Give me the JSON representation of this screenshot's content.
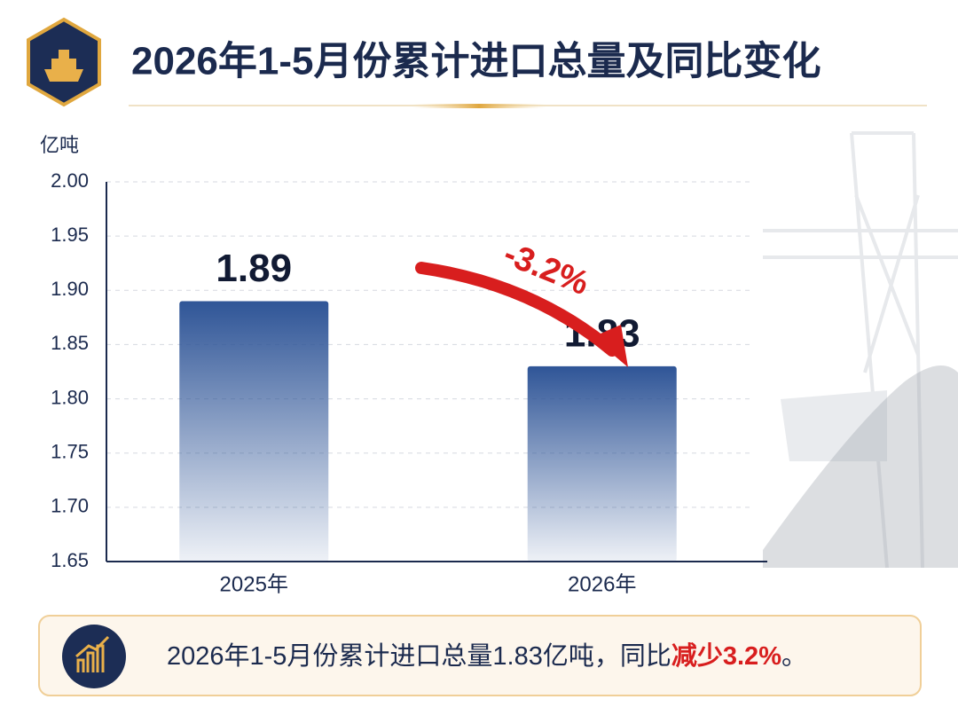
{
  "chart_data": {
    "type": "bar",
    "title": "2026年1-5月份累计进口总量及同比变化",
    "y_label": "亿吨",
    "categories": [
      "2025年",
      "2026年"
    ],
    "values": [
      1.89,
      1.83
    ],
    "color": "#2f5597",
    "ylim": [
      1.65,
      2.0
    ],
    "yticks": [
      {
        "value": 1.65,
        "label": "1.65"
      },
      {
        "value": 1.7,
        "label": "1.70"
      },
      {
        "value": 1.75,
        "label": "1.75"
      },
      {
        "value": 1.8,
        "label": "1.80"
      },
      {
        "value": 1.85,
        "label": "1.85"
      },
      {
        "value": 1.9,
        "label": "1.90"
      },
      {
        "value": 1.95,
        "label": "1.95"
      },
      {
        "value": 2.0,
        "label": "2.00"
      }
    ],
    "grid": true,
    "annotation": "-3.2%",
    "summary": [
      "2026年1-5月份累计进口总量1.83亿吨，同比",
      "减少3.2%",
      "。"
    ]
  }
}
